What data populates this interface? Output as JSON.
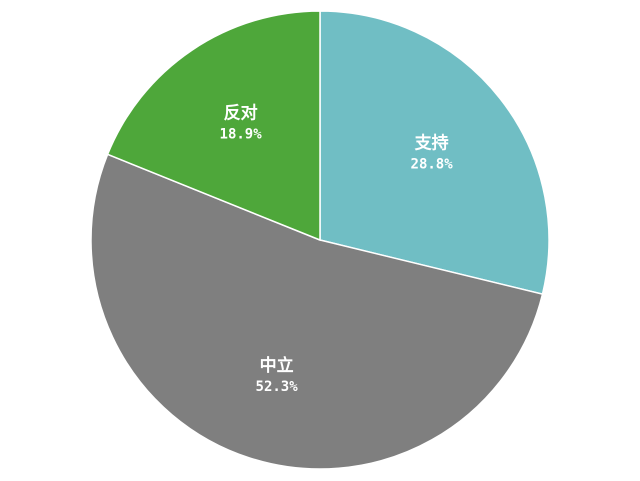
{
  "chart_data": {
    "type": "pie",
    "title": "",
    "legend": "none",
    "slices": [
      {
        "label": "支持",
        "value": 28.8,
        "value_label": "28.8%",
        "color": "#70bec4"
      },
      {
        "label": "中立",
        "value": 52.3,
        "value_label": "52.3%",
        "color": "#7f7f7f"
      },
      {
        "label": "反对",
        "value": 18.9,
        "value_label": "18.9%",
        "color": "#4ea73a"
      }
    ]
  }
}
